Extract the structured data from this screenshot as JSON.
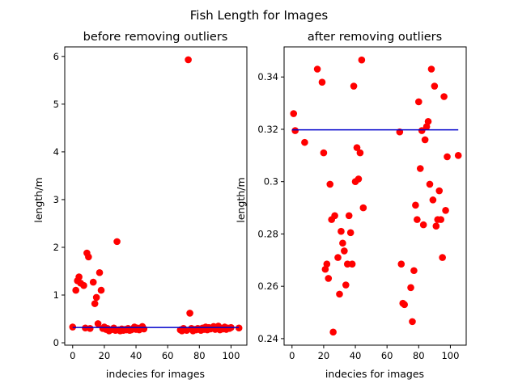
{
  "figure": {
    "suptitle": "Fish Length for Images"
  },
  "chart_data": [
    {
      "type": "scatter",
      "title": "before removing outliers",
      "xlabel": "indecies for images",
      "ylabel": "length/m",
      "xlim": [
        -5,
        110
      ],
      "ylim": [
        -0.05,
        6.2
      ],
      "xticks": [
        0,
        20,
        40,
        60,
        80,
        100
      ],
      "yticks": [
        0,
        1,
        2,
        3,
        4,
        5,
        6
      ],
      "grid": false,
      "marker_color": "#ff0000",
      "line_color": "#0000cc",
      "points": {
        "x": [
          0,
          2,
          3,
          4,
          5,
          7,
          8,
          9,
          10,
          11,
          13,
          14,
          15,
          16,
          17,
          18,
          19,
          20,
          21,
          22,
          23,
          24,
          25,
          26,
          27,
          28,
          29,
          30,
          31,
          32,
          33,
          34,
          35,
          36,
          37,
          38,
          39,
          40,
          41,
          42,
          43,
          44,
          45,
          68,
          69,
          70,
          72,
          73,
          74,
          75,
          76,
          77,
          78,
          79,
          80,
          81,
          82,
          83,
          84,
          85,
          86,
          87,
          88,
          89,
          90,
          91,
          92,
          93,
          94,
          95,
          96,
          97,
          98,
          99,
          100,
          105
        ],
        "y": [
          0.33,
          1.1,
          1.3,
          1.38,
          1.25,
          1.2,
          0.31,
          1.88,
          1.8,
          0.3,
          1.27,
          0.82,
          0.95,
          0.4,
          1.47,
          1.1,
          0.3,
          0.33,
          0.28,
          0.3,
          0.25,
          0.27,
          0.28,
          0.31,
          0.26,
          2.12,
          0.27,
          0.25,
          0.29,
          0.26,
          0.28,
          0.27,
          0.3,
          0.26,
          0.27,
          0.29,
          0.33,
          0.28,
          0.31,
          0.27,
          0.3,
          0.34,
          0.29,
          0.27,
          0.25,
          0.3,
          0.26,
          5.93,
          0.62,
          0.3,
          0.25,
          0.28,
          0.27,
          0.3,
          0.29,
          0.26,
          0.31,
          0.28,
          0.33,
          0.27,
          0.32,
          0.29,
          0.3,
          0.34,
          0.28,
          0.31,
          0.35,
          0.27,
          0.3,
          0.29,
          0.33,
          0.28,
          0.31,
          0.3,
          0.32,
          0.31
        ]
      },
      "hline": {
        "y": 0.32,
        "x": [
          0,
          105
        ]
      }
    },
    {
      "type": "scatter",
      "title": "after removing outliers",
      "xlabel": "indecies for images",
      "ylabel": "length/m",
      "xlim": [
        -5,
        110
      ],
      "ylim": [
        0.2375,
        0.3515
      ],
      "xticks": [
        0,
        20,
        40,
        60,
        80,
        100
      ],
      "yticks": [
        0.24,
        0.26,
        0.28,
        0.3,
        0.32,
        0.34
      ],
      "grid": false,
      "marker_color": "#ff0000",
      "line_color": "#0000cc",
      "points": {
        "x": [
          1,
          2,
          8,
          16,
          19,
          20,
          21,
          22,
          23,
          24,
          25,
          26,
          27,
          29,
          30,
          31,
          32,
          33,
          34,
          35,
          36,
          37,
          38,
          39,
          40,
          41,
          42,
          43,
          44,
          45,
          68,
          69,
          70,
          71,
          75,
          76,
          77,
          78,
          79,
          80,
          81,
          82,
          83,
          84,
          85,
          86,
          87,
          88,
          89,
          90,
          91,
          92,
          93,
          94,
          95,
          96,
          97,
          98,
          105
        ],
        "y": [
          0.326,
          0.3195,
          0.315,
          0.343,
          0.338,
          0.311,
          0.2665,
          0.2685,
          0.263,
          0.299,
          0.2855,
          0.2425,
          0.287,
          0.271,
          0.257,
          0.281,
          0.2765,
          0.2735,
          0.2605,
          0.2685,
          0.287,
          0.2805,
          0.2685,
          0.3365,
          0.3,
          0.313,
          0.301,
          0.311,
          0.3465,
          0.29,
          0.319,
          0.2685,
          0.2535,
          0.253,
          0.2595,
          0.2465,
          0.266,
          0.291,
          0.2855,
          0.3305,
          0.305,
          0.3195,
          0.2835,
          0.316,
          0.321,
          0.323,
          0.299,
          0.343,
          0.293,
          0.3365,
          0.283,
          0.2855,
          0.2965,
          0.2855,
          0.271,
          0.3325,
          0.289,
          0.3095,
          0.31
        ]
      },
      "hline": {
        "y": 0.3198,
        "x": [
          0,
          105
        ]
      }
    }
  ]
}
